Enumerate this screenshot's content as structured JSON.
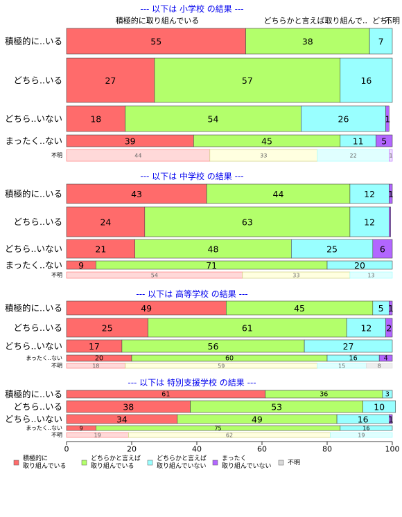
{
  "chart_data": {
    "type": "bar",
    "orientation": "horizontal",
    "stacked": true,
    "xlim": [
      0,
      100
    ],
    "x_ticks": [
      "0",
      "20",
      "40",
      "60",
      "80",
      "100"
    ],
    "colors": [
      "#ff6b6b",
      "#b3ff6b",
      "#99ffff",
      "#b266ff",
      "#d9d9d9"
    ],
    "legend": {
      "placement": "bottom",
      "entries": [
        {
          "line1": "積極的に",
          "line2": "取り組んでいる"
        },
        {
          "line1": "どちらかと言えば",
          "line2": "取り組んでいる"
        },
        {
          "line1": "どちらかと言えば",
          "line2": "取り組んでいない"
        },
        {
          "line1": "まったく",
          "line2": "取り組んでいない"
        },
        {
          "line1": "不明",
          "line2": ""
        }
      ]
    },
    "top_headers": [
      "積極的に取り組んでいる",
      "どちらかと言えば取り組んで..",
      "どち..",
      "不明"
    ],
    "panels": [
      {
        "title": "--- 以下は 小学校 の結果 ---",
        "rows": [
          {
            "label": "積極的に..いる",
            "values": [
              55,
              38,
              7,
              0
            ],
            "labels": [
              "55",
              "38",
              "7",
              ""
            ]
          },
          {
            "label": "どちら..いる",
            "values": [
              27,
              57,
              16,
              0
            ],
            "labels": [
              "27",
              "57",
              "16",
              ""
            ]
          },
          {
            "label": "どちら..いない",
            "values": [
              18,
              54,
              26,
              1
            ],
            "labels": [
              "18",
              "54",
              "26",
              "1"
            ]
          },
          {
            "label": "まったく..ない",
            "values": [
              39,
              45,
              11,
              5
            ],
            "labels": [
              "39",
              "45",
              "11",
              "5"
            ]
          },
          {
            "label": "不明",
            "values": [
              44,
              33,
              22,
              1
            ],
            "labels": [
              "44",
              "33",
              "22",
              "1"
            ]
          }
        ]
      },
      {
        "title": "--- 以下は 中学校 の結果 ---",
        "rows": [
          {
            "label": "積極的に..いる",
            "values": [
              43,
              44,
              12,
              1
            ],
            "labels": [
              "43",
              "44",
              "12",
              "1"
            ]
          },
          {
            "label": "どちら..いる",
            "values": [
              24,
              63,
              12,
              0.5
            ],
            "labels": [
              "24",
              "63",
              "12",
              ""
            ]
          },
          {
            "label": "どちら..いない",
            "values": [
              21,
              48,
              25,
              6
            ],
            "labels": [
              "21",
              "48",
              "25",
              "6"
            ]
          },
          {
            "label": "まったく..ない",
            "values": [
              9,
              71,
              20,
              0
            ],
            "labels": [
              "9",
              "71",
              "20",
              ""
            ]
          },
          {
            "label": "不明",
            "values": [
              54,
              33,
              13,
              0
            ],
            "labels": [
              "54",
              "33",
              "13",
              ""
            ]
          }
        ]
      },
      {
        "title": "--- 以下は 高等学校 の結果 ---",
        "rows": [
          {
            "label": "積極的に..いる",
            "values": [
              49,
              45,
              5,
              1
            ],
            "labels": [
              "49",
              "45",
              "5",
              "1"
            ]
          },
          {
            "label": "どちら..いる",
            "values": [
              25,
              61,
              12,
              2
            ],
            "labels": [
              "25",
              "61",
              "12",
              "2"
            ]
          },
          {
            "label": "どちら..いない",
            "values": [
              17,
              56,
              27,
              0
            ],
            "labels": [
              "17",
              "56",
              "27",
              ""
            ]
          },
          {
            "label": "まったく..ない",
            "values": [
              20,
              60,
              16,
              4
            ],
            "labels": [
              "20",
              "60",
              "16",
              "4"
            ]
          },
          {
            "label": "不明",
            "values": [
              18,
              59,
              15,
              0,
              8
            ],
            "labels": [
              "18",
              "59",
              "15",
              "",
              "8"
            ]
          }
        ]
      },
      {
        "title": "--- 以下は 特別支援学校 の結果 ---",
        "rows": [
          {
            "label": "積極的に..いる",
            "values": [
              61,
              36,
              3,
              0
            ],
            "labels": [
              "61",
              "36",
              "3",
              ""
            ]
          },
          {
            "label": "どちら..いる",
            "values": [
              38,
              53,
              10,
              0
            ],
            "labels": [
              "38",
              "53",
              "10",
              ""
            ]
          },
          {
            "label": "どちら..いない",
            "values": [
              34,
              49,
              16,
              1
            ],
            "labels": [
              "34",
              "49",
              "16",
              "1"
            ]
          },
          {
            "label": "まったく..ない",
            "values": [
              9,
              75,
              16,
              0
            ],
            "labels": [
              "9",
              "75",
              "16",
              ""
            ]
          },
          {
            "label": "不明",
            "values": [
              19,
              62,
              19,
              0
            ],
            "labels": [
              "19",
              "62",
              "19",
              ""
            ]
          }
        ]
      }
    ]
  }
}
